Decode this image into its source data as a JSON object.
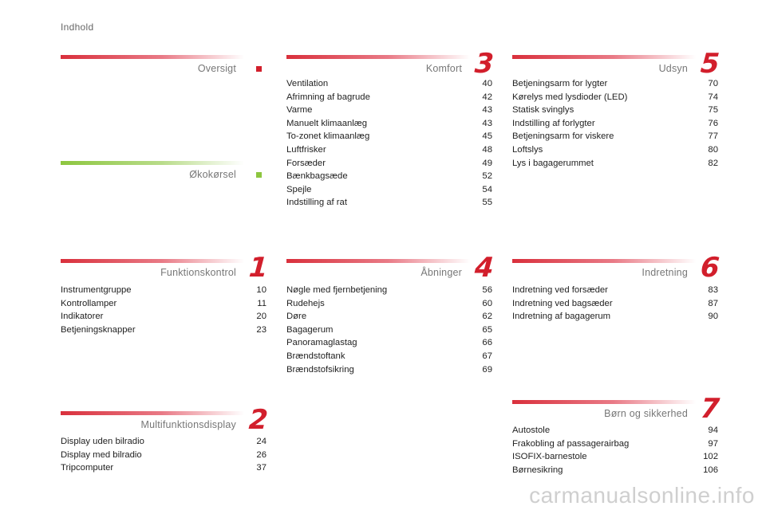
{
  "header": {
    "title": "Indhold"
  },
  "sections": {
    "oversigt": {
      "title": "Oversigt"
    },
    "okokorsel": {
      "title": "Økokørsel"
    },
    "funktion": {
      "title": "Funktionskontrol",
      "number": "1",
      "items": [
        {
          "label": "Instrumentgruppe",
          "page": "10"
        },
        {
          "label": "Kontrollamper",
          "page": "11"
        },
        {
          "label": "Indikatorer",
          "page": "20"
        },
        {
          "label": "Betjeningsknapper",
          "page": "23"
        }
      ]
    },
    "multi": {
      "title": "Multifunktionsdisplay",
      "number": "2",
      "items": [
        {
          "label": "Display uden bilradio",
          "page": "24"
        },
        {
          "label": "Display med bilradio",
          "page": "26"
        },
        {
          "label": "Tripcomputer",
          "page": "37"
        }
      ]
    },
    "komfort": {
      "title": "Komfort",
      "number": "3",
      "items": [
        {
          "label": "Ventilation",
          "page": "40"
        },
        {
          "label": "Afrimning af bagrude",
          "page": "42"
        },
        {
          "label": "Varme",
          "page": "43"
        },
        {
          "label": "Manuelt klimaanlæg",
          "page": "43"
        },
        {
          "label": "To-zonet klimaanlæg",
          "page": "45"
        },
        {
          "label": "Luftfrisker",
          "page": "48"
        },
        {
          "label": "Forsæder",
          "page": "49"
        },
        {
          "label": "Bænkbagsæde",
          "page": "52"
        },
        {
          "label": "Spejle",
          "page": "54"
        },
        {
          "label": "Indstilling af rat",
          "page": "55"
        }
      ]
    },
    "abninger": {
      "title": "Åbninger",
      "number": "4",
      "items": [
        {
          "label": "Nøgle med fjernbetjening",
          "page": "56"
        },
        {
          "label": "Rudehejs",
          "page": "60"
        },
        {
          "label": "Døre",
          "page": "62"
        },
        {
          "label": "Bagagerum",
          "page": "65"
        },
        {
          "label": "Panoramaglastag",
          "page": "66"
        },
        {
          "label": "Brændstoftank",
          "page": "67"
        },
        {
          "label": "Brændstofsikring",
          "page": "69"
        }
      ]
    },
    "udsyn": {
      "title": "Udsyn",
      "number": "5",
      "items": [
        {
          "label": "Betjeningsarm for lygter",
          "page": "70"
        },
        {
          "label": "Kørelys med lysdioder (LED)",
          "page": "74"
        },
        {
          "label": "Statisk svinglys",
          "page": "75"
        },
        {
          "label": "Indstilling af forlygter",
          "page": "76"
        },
        {
          "label": "Betjeningsarm for viskere",
          "page": "77"
        },
        {
          "label": "Loftslys",
          "page": "80"
        },
        {
          "label": "Lys i bagagerummet",
          "page": "82"
        }
      ]
    },
    "indretning": {
      "title": "Indretning",
      "number": "6",
      "items": [
        {
          "label": "Indretning ved forsæder",
          "page": "83"
        },
        {
          "label": "Indretning ved bagsæder",
          "page": "87"
        },
        {
          "label": "Indretning af bagagerum",
          "page": "90"
        }
      ]
    },
    "born": {
      "title": "Børn og sikkerhed",
      "number": "7",
      "items": [
        {
          "label": "Autostole",
          "page": "94"
        },
        {
          "label": "Frakobling af passagerairbag",
          "page": "97"
        },
        {
          "label": "ISOFIX-barnestole",
          "page": "102"
        },
        {
          "label": "Børnesikring",
          "page": "106"
        }
      ]
    }
  },
  "watermark": "carmanualsonline.info",
  "colors": {
    "accent_red": "#d21f2c",
    "accent_green": "#8dc63f"
  }
}
